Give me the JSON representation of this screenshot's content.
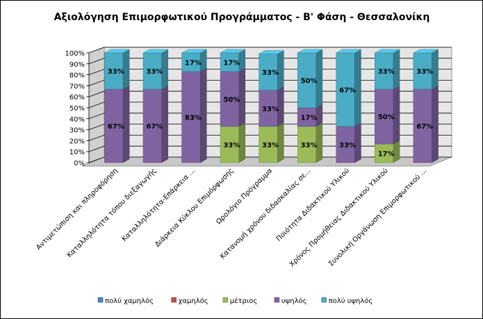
{
  "chart_data": {
    "type": "bar",
    "stacked": true,
    "percent": true,
    "title": "Αξιολόγηση Επιμορφωτικού Προγράμματος - Β' Φάση - Θεσσαλονίκη",
    "ylim": [
      0,
      100
    ],
    "yticks": [
      "0%",
      "10%",
      "20%",
      "30%",
      "40%",
      "50%",
      "60%",
      "70%",
      "80%",
      "90%",
      "100%"
    ],
    "grid": true,
    "legend_position": "bottom",
    "categories": [
      "Αντιμετώπιση και πληροφόρηση",
      "Καταλληλότητα τόπου διεξαγωγής",
      "Καταλληλότητα-Επάρκεια ...",
      "Διάρκεια Κύκλου Επιμόρφωσης",
      "Ωρολόγιο Πρόγραμμα",
      "Κατανομή χρόνου διδασκαλίας σε...",
      "Ποιότητα Διδακτικού Υλικού",
      "Χρόνος Προμήθειας Διδακτικού Υλικού",
      "Συνολική Οργάνωση Επιμορφωτικού ..."
    ],
    "series": [
      {
        "name": "πολύ χαμηλός",
        "color": "#4f81bd",
        "values": [
          0,
          0,
          0,
          0,
          0,
          0,
          0,
          0,
          0
        ]
      },
      {
        "name": "χαμηλός",
        "color": "#c0504d",
        "values": [
          0,
          0,
          0,
          0,
          0,
          0,
          0,
          0,
          0
        ]
      },
      {
        "name": "μέτριος",
        "color": "#9bbb59",
        "values": [
          0,
          0,
          0,
          33,
          33,
          33,
          0,
          17,
          0
        ]
      },
      {
        "name": "υψηλός",
        "color": "#8064a2",
        "values": [
          67,
          67,
          83,
          50,
          33,
          17,
          33,
          50,
          67
        ]
      },
      {
        "name": "πολύ υψηλός",
        "color": "#4bacc6",
        "values": [
          33,
          33,
          17,
          17,
          33,
          50,
          67,
          33,
          33
        ]
      }
    ],
    "data_labels": [
      [
        "",
        "",
        "",
        "67%",
        "33%"
      ],
      [
        "",
        "",
        "",
        "67%",
        "33%"
      ],
      [
        "",
        "",
        "",
        "83%",
        "17%"
      ],
      [
        "",
        "",
        "33%",
        "50%",
        "17%"
      ],
      [
        "",
        "",
        "33%",
        "33%",
        "33%"
      ],
      [
        "",
        "",
        "33%",
        "17%",
        "50%"
      ],
      [
        "",
        "",
        "",
        "33%",
        "67%"
      ],
      [
        "",
        "",
        "17%",
        "50%",
        "33%"
      ],
      [
        "",
        "",
        "",
        "67%",
        "33%"
      ]
    ]
  }
}
